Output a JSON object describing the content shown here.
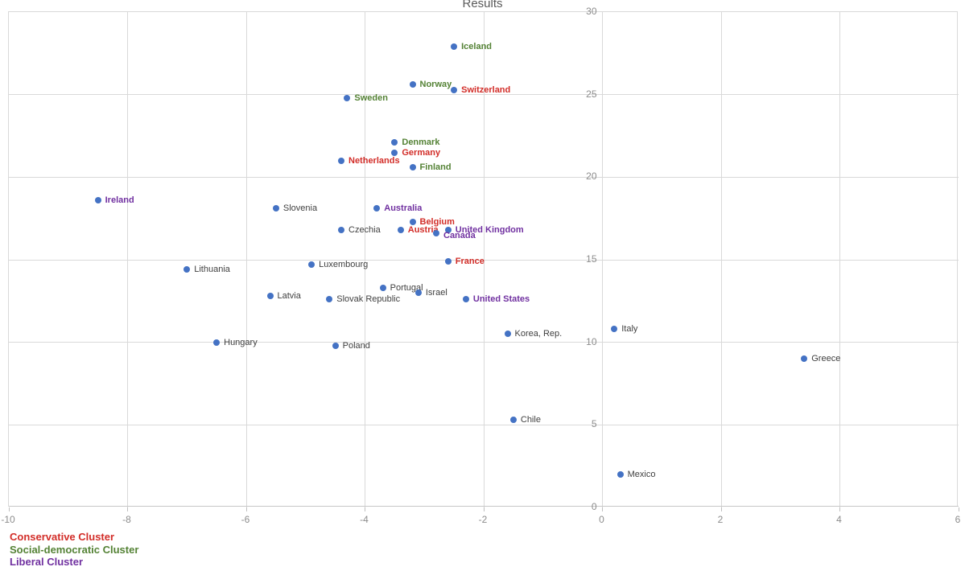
{
  "title": "Results",
  "legend": {
    "items": [
      {
        "label": "Conservative Cluster",
        "cluster": "conservative",
        "color": "#d22d28"
      },
      {
        "label": "Social-democratic Cluster",
        "cluster": "social_democratic",
        "color": "#548235"
      },
      {
        "label": "Liberal Cluster",
        "cluster": "liberal",
        "color": "#7030a0"
      }
    ]
  },
  "chart_data": {
    "type": "scatter",
    "title": "Results",
    "xlabel": "",
    "ylabel": "",
    "xlim": [
      -10,
      6
    ],
    "ylim": [
      0,
      30
    ],
    "x_ticks": [
      -10,
      -8,
      -6,
      -4,
      -2,
      0,
      2,
      4,
      6
    ],
    "y_ticks": [
      0,
      5,
      10,
      15,
      20,
      25,
      30
    ],
    "grid": true,
    "point_color": "#4472c4",
    "gridline_color": "#d9d9d9",
    "tick_label_color": "#8c8c8c",
    "title_color": "#595959",
    "cluster_colors": {
      "conservative": "#d22d28",
      "social_democratic": "#548235",
      "liberal": "#7030a0",
      "none": "#404040"
    },
    "points": [
      {
        "label": "Iceland",
        "x": -2.5,
        "y": 27.9,
        "cluster": "social_democratic"
      },
      {
        "label": "Norway",
        "x": -3.2,
        "y": 25.6,
        "cluster": "social_democratic"
      },
      {
        "label": "Switzerland",
        "x": -2.5,
        "y": 25.3,
        "cluster": "conservative"
      },
      {
        "label": "Sweden",
        "x": -4.3,
        "y": 24.8,
        "cluster": "social_democratic"
      },
      {
        "label": "Denmark",
        "x": -3.5,
        "y": 22.1,
        "cluster": "social_democratic"
      },
      {
        "label": "Germany",
        "x": -3.5,
        "y": 21.5,
        "cluster": "conservative"
      },
      {
        "label": "Netherlands",
        "x": -4.4,
        "y": 21.0,
        "cluster": "conservative"
      },
      {
        "label": "Finland",
        "x": -3.2,
        "y": 20.6,
        "cluster": "social_democratic"
      },
      {
        "label": "Ireland",
        "x": -8.5,
        "y": 18.6,
        "cluster": "liberal"
      },
      {
        "label": "Slovenia",
        "x": -5.5,
        "y": 18.1,
        "cluster": "none"
      },
      {
        "label": "Australia",
        "x": -3.8,
        "y": 18.1,
        "cluster": "liberal"
      },
      {
        "label": "Belgium",
        "x": -3.2,
        "y": 17.3,
        "cluster": "conservative"
      },
      {
        "label": "United Kingdom",
        "x": -2.6,
        "y": 16.8,
        "cluster": "liberal"
      },
      {
        "label": "Czechia",
        "x": -4.4,
        "y": 16.8,
        "cluster": "none"
      },
      {
        "label": "Austria",
        "x": -3.4,
        "y": 16.8,
        "cluster": "conservative"
      },
      {
        "label": "Canada",
        "x": -2.8,
        "y": 16.6,
        "cluster": "liberal",
        "label_dy": 3
      },
      {
        "label": "France",
        "x": -2.6,
        "y": 14.9,
        "cluster": "conservative"
      },
      {
        "label": "Luxembourg",
        "x": -4.9,
        "y": 14.7,
        "cluster": "none"
      },
      {
        "label": "Lithuania",
        "x": -7.0,
        "y": 14.4,
        "cluster": "none"
      },
      {
        "label": "Portugal",
        "x": -3.7,
        "y": 13.3,
        "cluster": "none"
      },
      {
        "label": "Israel",
        "x": -3.1,
        "y": 13.0,
        "cluster": "none"
      },
      {
        "label": "Latvia",
        "x": -5.6,
        "y": 12.8,
        "cluster": "none"
      },
      {
        "label": "Slovak Republic",
        "x": -4.6,
        "y": 12.6,
        "cluster": "none"
      },
      {
        "label": "United States",
        "x": -2.3,
        "y": 12.6,
        "cluster": "liberal"
      },
      {
        "label": "Italy",
        "x": 0.2,
        "y": 10.8,
        "cluster": "none"
      },
      {
        "label": "Korea, Rep.",
        "x": -1.6,
        "y": 10.5,
        "cluster": "none"
      },
      {
        "label": "Hungary",
        "x": -6.5,
        "y": 10.0,
        "cluster": "none"
      },
      {
        "label": "Poland",
        "x": -4.5,
        "y": 9.8,
        "cluster": "none"
      },
      {
        "label": "Greece",
        "x": 3.4,
        "y": 9.0,
        "cluster": "none"
      },
      {
        "label": "Chile",
        "x": -1.5,
        "y": 5.3,
        "cluster": "none"
      },
      {
        "label": "Mexico",
        "x": 0.3,
        "y": 2.0,
        "cluster": "none"
      }
    ]
  }
}
